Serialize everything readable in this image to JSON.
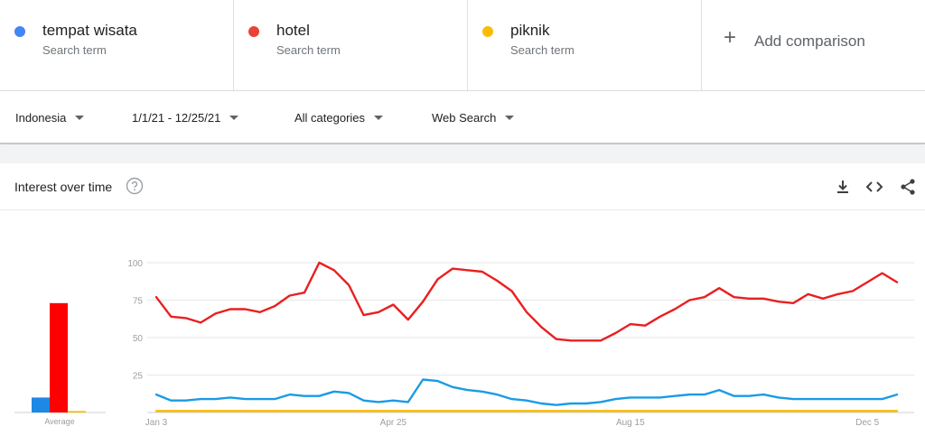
{
  "terms": [
    {
      "name": "tempat wisata",
      "sub": "Search term",
      "color": "#4285f4"
    },
    {
      "name": "hotel",
      "sub": "Search term",
      "color": "#ea4335"
    },
    {
      "name": "piknik",
      "sub": "Search term",
      "color": "#fbbc04"
    }
  ],
  "add_comparison": {
    "icon": "+",
    "label": "Add comparison"
  },
  "filters": {
    "region": "Indonesia",
    "date_range": "1/1/21 - 12/25/21",
    "category": "All categories",
    "search_type": "Web Search"
  },
  "card": {
    "title": "Interest over time",
    "icons": [
      "help-icon",
      "download-icon",
      "embed-icon",
      "share-icon"
    ]
  },
  "chart_data": {
    "type": "line",
    "y_ticks": [
      "100",
      "75",
      "50",
      "25"
    ],
    "ylim": [
      0,
      100
    ],
    "x_tick_labels": [
      "Jan 3",
      "Apr 25",
      "Aug 15",
      "Dec 5"
    ],
    "average_label": "Average",
    "average_bars": [
      {
        "name": "tempat wisata",
        "value": 10,
        "color": "#1e88e5"
      },
      {
        "name": "hotel",
        "value": 73,
        "color": "#ff0000"
      },
      {
        "name": "piknik",
        "value": 1,
        "color": "#fbbc04"
      }
    ],
    "series": [
      {
        "name": "hotel",
        "color": "#ea1f1f",
        "values": [
          77,
          64,
          63,
          60,
          66,
          69,
          69,
          67,
          71,
          78,
          80,
          100,
          95,
          85,
          65,
          67,
          72,
          62,
          74,
          89,
          96,
          95,
          94,
          88,
          81,
          67,
          57,
          49,
          48,
          48,
          48,
          53,
          59,
          58,
          64,
          69,
          75,
          77,
          83,
          77,
          76,
          76,
          74,
          73,
          79,
          76,
          79,
          81,
          87,
          93,
          87
        ]
      },
      {
        "name": "tempat wisata",
        "color": "#1a9be6",
        "values": [
          12,
          8,
          8,
          9,
          9,
          10,
          9,
          9,
          9,
          12,
          11,
          11,
          14,
          13,
          8,
          7,
          8,
          7,
          22,
          21,
          17,
          15,
          14,
          12,
          9,
          8,
          6,
          5,
          6,
          6,
          7,
          9,
          10,
          10,
          10,
          11,
          12,
          12,
          15,
          11,
          11,
          12,
          10,
          9,
          9,
          9,
          9,
          9,
          9,
          9,
          12
        ]
      },
      {
        "name": "piknik",
        "color": "#fbbc04",
        "values": [
          1,
          1,
          1,
          1,
          1,
          1,
          1,
          1,
          1,
          1,
          1,
          1,
          1,
          1,
          1,
          1,
          1,
          1,
          1,
          1,
          1,
          1,
          1,
          1,
          1,
          1,
          1,
          1,
          1,
          1,
          1,
          1,
          1,
          1,
          1,
          1,
          1,
          1,
          1,
          1,
          1,
          1,
          1,
          1,
          1,
          1,
          1,
          1,
          1,
          1,
          1
        ]
      }
    ]
  }
}
